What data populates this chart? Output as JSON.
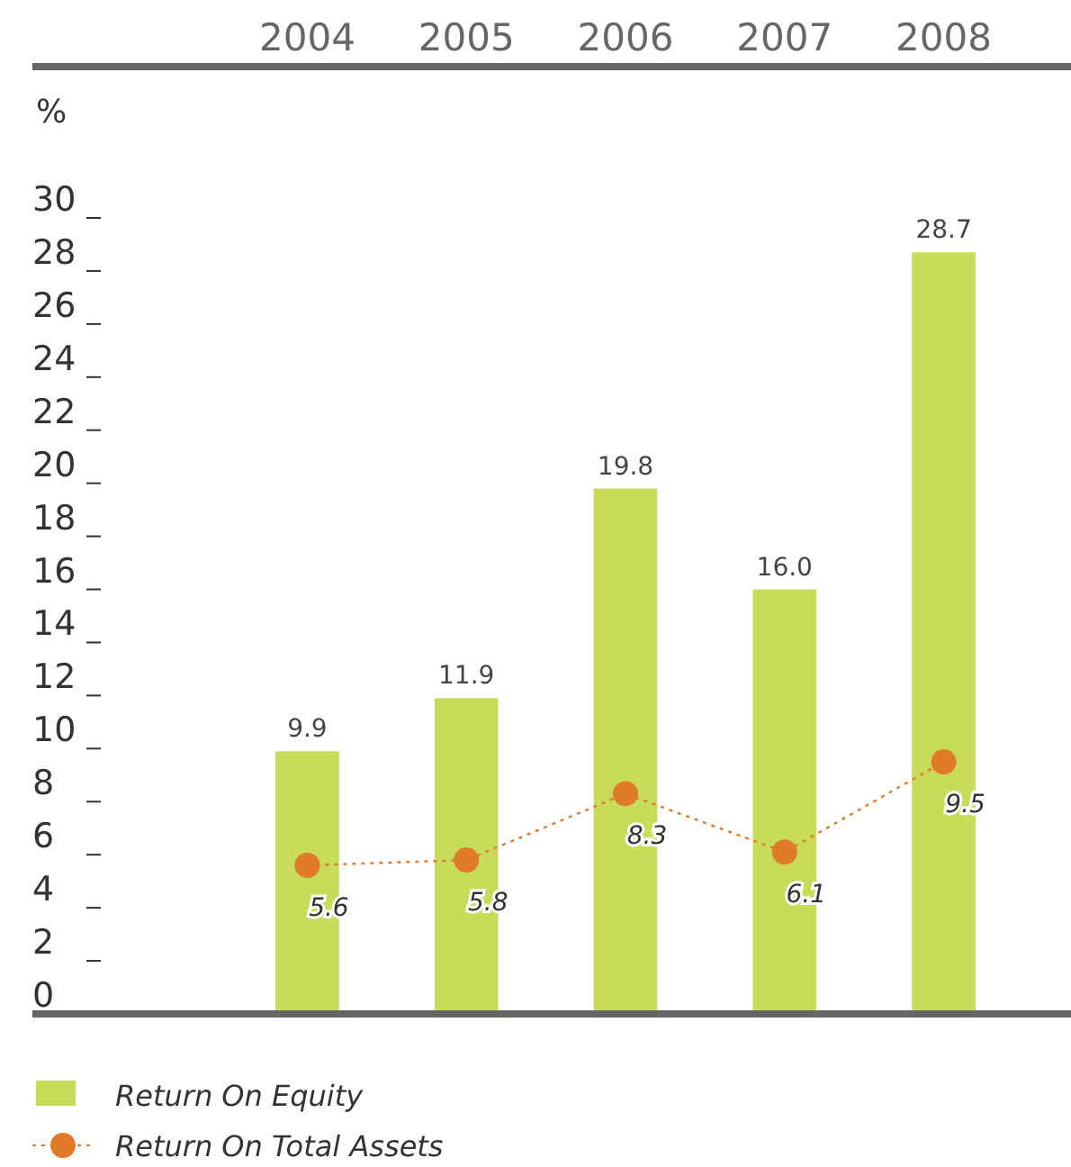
{
  "chart_data": {
    "type": "bar",
    "ylabel": "%",
    "categories": [
      "2004",
      "2005",
      "2006",
      "2007",
      "2008"
    ],
    "series": [
      {
        "name": "Return On Equity",
        "color": "#c8dc5a",
        "values": [
          9.9,
          11.9,
          19.8,
          16.0,
          28.7
        ],
        "value_labels": [
          "9.9",
          "11.9",
          "19.8",
          "16.0",
          "28.7"
        ]
      },
      {
        "name": "Return On Total Assets",
        "type": "line",
        "color": "#e07b2a",
        "values": [
          5.6,
          5.8,
          8.3,
          6.1,
          9.5
        ],
        "value_labels": [
          "5.6",
          "5.8",
          "8.3",
          "6.1",
          "9.5"
        ],
        "marker": "circle",
        "line_style": "dotted"
      }
    ],
    "ylim": [
      0,
      30
    ],
    "yticks": [
      0,
      2,
      4,
      6,
      8,
      10,
      12,
      14,
      16,
      18,
      20,
      22,
      24,
      26,
      28,
      30
    ],
    "grid": false,
    "legend": "bottom left"
  }
}
